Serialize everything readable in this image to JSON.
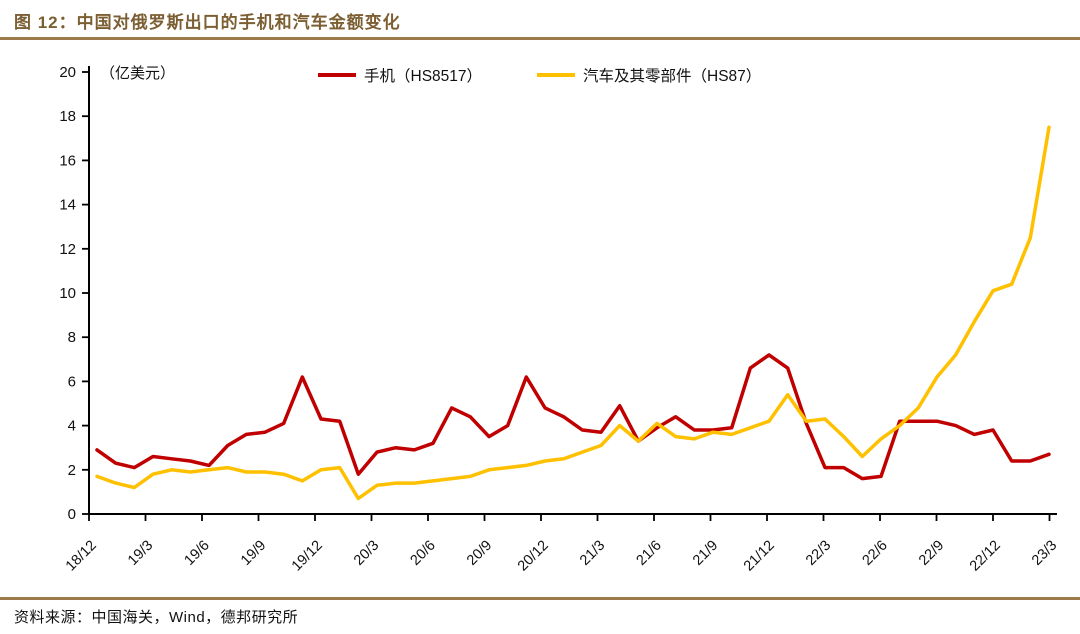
{
  "chart_data": {
    "type": "line",
    "title": "图 12：中国对俄罗斯出口的手机和汽车金额变化",
    "ylabel": "（亿美元）",
    "xlabel": "",
    "ylim": [
      0,
      20
    ],
    "y_tick_step": 2,
    "grid": false,
    "legend_position": "top",
    "categories": [
      "18/12",
      "19/1",
      "19/2",
      "19/3",
      "19/4",
      "19/5",
      "19/6",
      "19/7",
      "19/8",
      "19/9",
      "19/10",
      "19/11",
      "19/12",
      "20/1",
      "20/2",
      "20/3",
      "20/4",
      "20/5",
      "20/6",
      "20/7",
      "20/8",
      "20/9",
      "20/10",
      "20/11",
      "20/12",
      "21/1",
      "21/2",
      "21/3",
      "21/4",
      "21/5",
      "21/6",
      "21/7",
      "21/8",
      "21/9",
      "21/10",
      "21/11",
      "21/12",
      "22/1",
      "22/2",
      "22/3",
      "22/4",
      "22/5",
      "22/6",
      "22/7",
      "22/8",
      "22/9",
      "22/10",
      "22/11",
      "22/12",
      "23/1",
      "23/2",
      "23/3"
    ],
    "x_tick_labels": [
      "18/12",
      "19/3",
      "19/6",
      "19/9",
      "19/12",
      "20/3",
      "20/6",
      "20/9",
      "20/12",
      "21/3",
      "21/6",
      "21/9",
      "21/12",
      "22/3",
      "22/6",
      "22/9",
      "22/12",
      "23/3"
    ],
    "x_tick_every": 3,
    "series": [
      {
        "name": "手机（HS8517）",
        "color": "#C00000",
        "values": [
          2.9,
          2.3,
          2.1,
          2.6,
          2.5,
          2.4,
          2.2,
          3.1,
          3.6,
          3.7,
          4.1,
          6.2,
          4.3,
          4.2,
          1.8,
          2.8,
          3.0,
          2.9,
          3.2,
          4.8,
          4.4,
          3.5,
          4.0,
          6.2,
          4.8,
          4.4,
          3.8,
          3.7,
          4.9,
          3.3,
          3.9,
          4.4,
          3.8,
          3.8,
          3.9,
          6.6,
          7.2,
          6.6,
          4.1,
          2.1,
          2.1,
          1.6,
          1.7,
          4.2,
          4.2,
          4.2,
          4.0,
          3.6,
          3.8,
          2.4,
          2.4,
          2.7
        ]
      },
      {
        "name": "汽车及其零部件（HS87）",
        "color": "#FFC000",
        "values": [
          1.7,
          1.4,
          1.2,
          1.8,
          2.0,
          1.9,
          2.0,
          2.1,
          1.9,
          1.9,
          1.8,
          1.5,
          2.0,
          2.1,
          0.7,
          1.3,
          1.4,
          1.4,
          1.5,
          1.6,
          1.7,
          2.0,
          2.1,
          2.2,
          2.4,
          2.5,
          2.8,
          3.1,
          4.0,
          3.3,
          4.1,
          3.5,
          3.4,
          3.7,
          3.6,
          3.9,
          4.2,
          5.4,
          4.2,
          4.3,
          3.5,
          2.6,
          3.4,
          4.0,
          4.8,
          6.2,
          7.2,
          8.7,
          10.1,
          10.4,
          12.5,
          17.5
        ]
      }
    ]
  },
  "source": {
    "text": "资料来源：中国海关，Wind，德邦研究所"
  },
  "colors": {
    "title": "#7C5E33",
    "rule": "#9A7A48",
    "axis": "#000000",
    "phones_line": "#C00000",
    "vehicles_line": "#FFC000"
  }
}
